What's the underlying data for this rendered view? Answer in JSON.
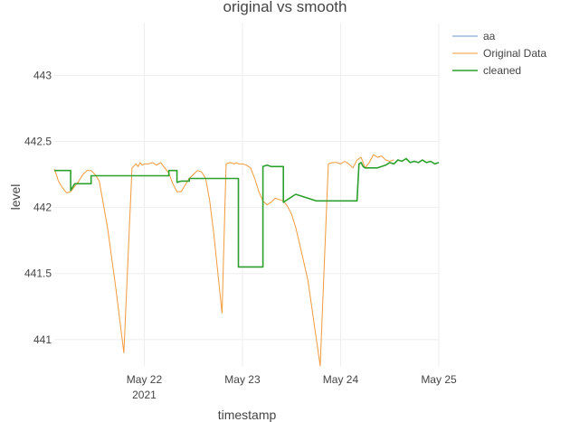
{
  "chart_data": {
    "type": "line",
    "title": "original vs smooth",
    "xlabel": "timestamp",
    "ylabel": "level",
    "xlim": [
      "2021-05-21 02:00",
      "2021-05-25 00:00"
    ],
    "ylim": [
      440.8,
      443.4
    ],
    "grid": true,
    "legend_position": "top-right",
    "x_ticks": [
      {
        "value": "2021-05-22 00:00",
        "label": "May 22",
        "sublabel": "2021"
      },
      {
        "value": "2021-05-23 00:00",
        "label": "May 23",
        "sublabel": ""
      },
      {
        "value": "2021-05-24 00:00",
        "label": "May 24",
        "sublabel": ""
      },
      {
        "value": "2021-05-25 00:00",
        "label": "May 25",
        "sublabel": ""
      }
    ],
    "y_ticks": [
      {
        "value": 441,
        "label": "441"
      },
      {
        "value": 441.5,
        "label": "441.5"
      },
      {
        "value": 442,
        "label": "442"
      },
      {
        "value": 442.5,
        "label": "442.5"
      },
      {
        "value": 443,
        "label": "443"
      }
    ],
    "series": [
      {
        "name": "aa",
        "color": "#6b9bd1",
        "width": 1,
        "x": [],
        "y": []
      },
      {
        "name": "Original Data",
        "color": "#f39a3b",
        "width": 1,
        "x": [
          "2021-05-21 02:00",
          "2021-05-21 02:30",
          "2021-05-21 03:00",
          "2021-05-21 04:00",
          "2021-05-21 05:00",
          "2021-05-21 06:00",
          "2021-05-21 07:00",
          "2021-05-21 08:00",
          "2021-05-21 09:00",
          "2021-05-21 10:00",
          "2021-05-21 11:00",
          "2021-05-21 12:00",
          "2021-05-21 13:00",
          "2021-05-21 15:00",
          "2021-05-21 17:00",
          "2021-05-21 19:00",
          "2021-05-21 21:00",
          "2021-05-21 22:00",
          "2021-05-21 22:30",
          "2021-05-21 23:00",
          "2021-05-21 23:30",
          "2021-05-22 00:00",
          "2021-05-22 01:00",
          "2021-05-22 02:00",
          "2021-05-22 03:00",
          "2021-05-22 04:00",
          "2021-05-22 05:00",
          "2021-05-22 06:00",
          "2021-05-22 07:00",
          "2021-05-22 08:00",
          "2021-05-22 09:00",
          "2021-05-22 10:00",
          "2021-05-22 11:00",
          "2021-05-22 12:00",
          "2021-05-22 13:00",
          "2021-05-22 14:00",
          "2021-05-22 15:00",
          "2021-05-22 16:00",
          "2021-05-22 17:00",
          "2021-05-22 19:00",
          "2021-05-22 20:00",
          "2021-05-22 21:00",
          "2021-05-22 22:00",
          "2021-05-22 22:30",
          "2021-05-22 23:00",
          "2021-05-22 23:30",
          "2021-05-23 00:00",
          "2021-05-23 01:00",
          "2021-05-23 02:00",
          "2021-05-23 03:00",
          "2021-05-23 04:00",
          "2021-05-23 05:00",
          "2021-05-23 06:00",
          "2021-05-23 07:00",
          "2021-05-23 08:00",
          "2021-05-23 10:00",
          "2021-05-23 11:00",
          "2021-05-23 12:00",
          "2021-05-23 13:00",
          "2021-05-23 14:00",
          "2021-05-23 16:00",
          "2021-05-23 19:00",
          "2021-05-23 21:00",
          "2021-05-23 22:00",
          "2021-05-23 23:00",
          "2021-05-24 00:00",
          "2021-05-24 01:00",
          "2021-05-24 02:00",
          "2021-05-24 03:00",
          "2021-05-24 04:00",
          "2021-05-24 05:00",
          "2021-05-24 06:00",
          "2021-05-24 07:00",
          "2021-05-24 08:00",
          "2021-05-24 09:00",
          "2021-05-24 10:00",
          "2021-05-24 11:00",
          "2021-05-24 12:00",
          "2021-05-24 13:00"
        ],
        "y": [
          442.29,
          442.25,
          442.2,
          442.15,
          442.11,
          442.12,
          442.16,
          442.2,
          442.25,
          442.28,
          442.28,
          442.25,
          442.2,
          441.85,
          441.4,
          440.9,
          442.3,
          442.33,
          442.31,
          442.34,
          442.32,
          442.33,
          442.33,
          442.34,
          442.32,
          442.34,
          442.3,
          442.26,
          442.18,
          442.12,
          442.12,
          442.17,
          442.22,
          442.25,
          442.28,
          442.27,
          442.22,
          442.05,
          441.8,
          441.2,
          442.33,
          442.34,
          442.33,
          442.34,
          442.33,
          442.33,
          442.33,
          442.32,
          442.3,
          442.22,
          442.12,
          442.05,
          442.02,
          442.04,
          442.07,
          442.05,
          442.01,
          441.95,
          441.85,
          441.72,
          441.45,
          440.8,
          442.33,
          442.34,
          442.34,
          442.33,
          442.35,
          442.33,
          442.3,
          442.36,
          442.38,
          442.3,
          442.34,
          442.4,
          442.38,
          442.39,
          442.36,
          442.35,
          442.36
        ]
      },
      {
        "name": "cleaned",
        "color": "#2ca02c",
        "width": 1.6,
        "x": [
          "2021-05-21 02:00",
          "2021-05-21 02:30",
          "2021-05-21 03:00",
          "2021-05-21 04:00",
          "2021-05-21 05:00",
          "2021-05-21 06:00",
          "2021-05-21 06:00",
          "2021-05-21 07:00",
          "2021-05-21 08:00",
          "2021-05-21 09:00",
          "2021-05-21 10:00",
          "2021-05-21 11:00",
          "2021-05-21 11:00",
          "2021-05-21 13:00",
          "2021-05-21 17:00",
          "2021-05-21 21:00",
          "2021-05-22 02:00",
          "2021-05-22 06:00",
          "2021-05-22 06:00",
          "2021-05-22 07:00",
          "2021-05-22 08:00",
          "2021-05-22 08:00",
          "2021-05-22 09:00",
          "2021-05-22 10:00",
          "2021-05-22 11:00",
          "2021-05-22 11:00",
          "2021-05-22 15:00",
          "2021-05-22 19:00",
          "2021-05-22 23:00",
          "2021-05-22 23:00",
          "2021-05-23 02:00",
          "2021-05-23 05:00",
          "2021-05-23 05:00",
          "2021-05-23 06:00",
          "2021-05-23 07:00",
          "2021-05-23 08:00",
          "2021-05-23 10:00",
          "2021-05-23 10:00",
          "2021-05-23 13:00",
          "2021-05-23 18:00",
          "2021-05-23 23:00",
          "2021-05-24 02:00",
          "2021-05-24 04:00",
          "2021-05-24 04:30",
          "2021-05-24 05:00",
          "2021-05-24 05:30",
          "2021-05-24 06:00",
          "2021-05-24 07:00",
          "2021-05-24 08:00",
          "2021-05-24 09:00",
          "2021-05-24 10:00",
          "2021-05-24 11:00",
          "2021-05-24 12:00",
          "2021-05-24 13:00",
          "2021-05-24 14:00",
          "2021-05-24 15:00",
          "2021-05-24 16:00",
          "2021-05-24 17:00",
          "2021-05-24 18:00",
          "2021-05-24 19:00",
          "2021-05-24 20:00",
          "2021-05-24 21:00",
          "2021-05-24 22:00",
          "2021-05-24 23:00",
          "2021-05-25 00:00"
        ],
        "y": [
          442.28,
          442.28,
          442.28,
          442.28,
          442.28,
          442.28,
          442.13,
          442.18,
          442.18,
          442.18,
          442.18,
          442.18,
          442.24,
          442.24,
          442.24,
          442.24,
          442.24,
          442.24,
          442.28,
          442.28,
          442.28,
          442.19,
          442.2,
          442.2,
          442.2,
          442.22,
          442.22,
          442.22,
          442.22,
          441.55,
          441.55,
          441.55,
          442.31,
          442.32,
          442.31,
          442.31,
          442.31,
          442.04,
          442.1,
          442.05,
          442.05,
          442.05,
          442.05,
          442.33,
          442.34,
          442.31,
          442.3,
          442.3,
          442.3,
          442.3,
          442.31,
          442.32,
          442.34,
          442.33,
          442.36,
          442.35,
          442.37,
          442.34,
          442.35,
          442.34,
          442.36,
          442.34,
          442.35,
          442.33,
          442.34
        ]
      }
    ]
  }
}
